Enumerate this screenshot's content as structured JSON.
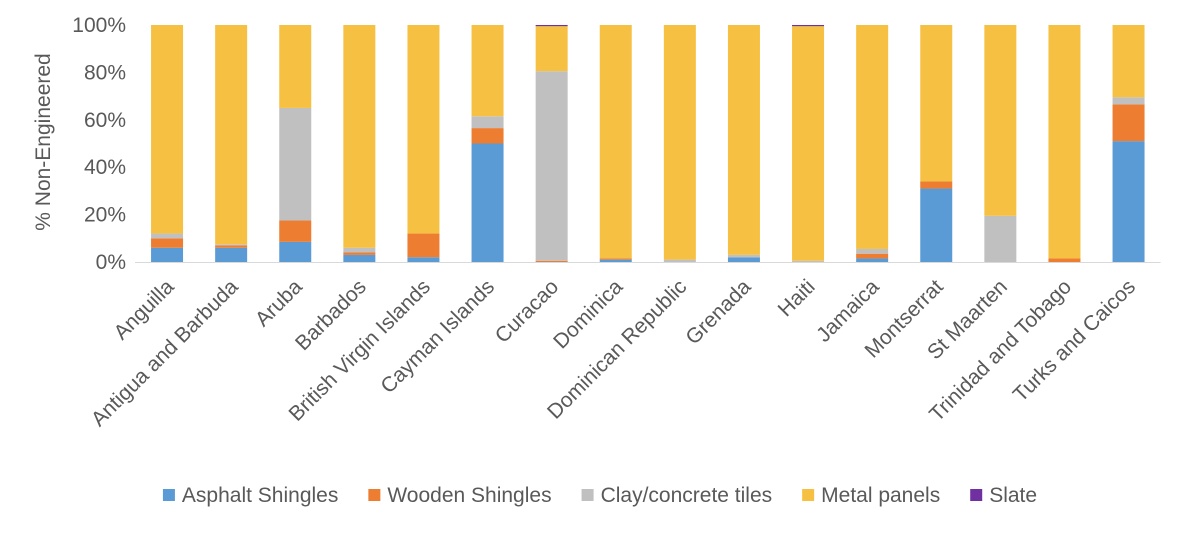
{
  "chart_data": {
    "type": "bar",
    "stacked": true,
    "ylabel": "% Non-Engineered",
    "ylim": [
      0,
      100
    ],
    "yticks": [
      "0%",
      "20%",
      "40%",
      "60%",
      "80%",
      "100%"
    ],
    "grid": false,
    "legend_position": "bottom",
    "categories": [
      "Anguilla",
      "Antigua and Barbuda",
      "Aruba",
      "Barbados",
      "British Virgin Islands",
      "Cayman Islands",
      "Curacao",
      "Dominica",
      "Dominican Republic",
      "Grenada",
      "Haiti",
      "Jamaica",
      "Montserrat",
      "St Maarten",
      "Trinidad and Tobago",
      "Turks and Caicos"
    ],
    "series": [
      {
        "name": "Asphalt Shingles",
        "color": "#5B9BD5",
        "values": [
          6,
          6,
          8.5,
          3,
          2,
          50,
          0,
          1,
          0,
          2,
          0,
          1.5,
          31,
          0,
          0,
          51
        ]
      },
      {
        "name": "Wooden Shingles",
        "color": "#ED7D31",
        "values": [
          4,
          1,
          9,
          1,
          10,
          6.5,
          0.5,
          0.5,
          0,
          0,
          0,
          2,
          3,
          0,
          1.5,
          15.5
        ]
      },
      {
        "name": "Clay/concrete tiles",
        "color": "#C0C0C0",
        "values": [
          2,
          0.5,
          47.5,
          2,
          0,
          5,
          80,
          0,
          1,
          1,
          0.5,
          2,
          0,
          19.5,
          0,
          3
        ]
      },
      {
        "name": "Metal panels",
        "color": "#F6C142",
        "values": [
          88,
          92.5,
          35,
          94,
          88,
          38.5,
          19,
          98.5,
          99,
          97,
          99,
          94.5,
          66,
          80.5,
          98.5,
          30.5
        ]
      },
      {
        "name": "Slate",
        "color": "#7030A0",
        "values": [
          0,
          0,
          0,
          0,
          0,
          0,
          0.5,
          0,
          0,
          0,
          0.5,
          0,
          0,
          0,
          0,
          0
        ]
      }
    ]
  }
}
